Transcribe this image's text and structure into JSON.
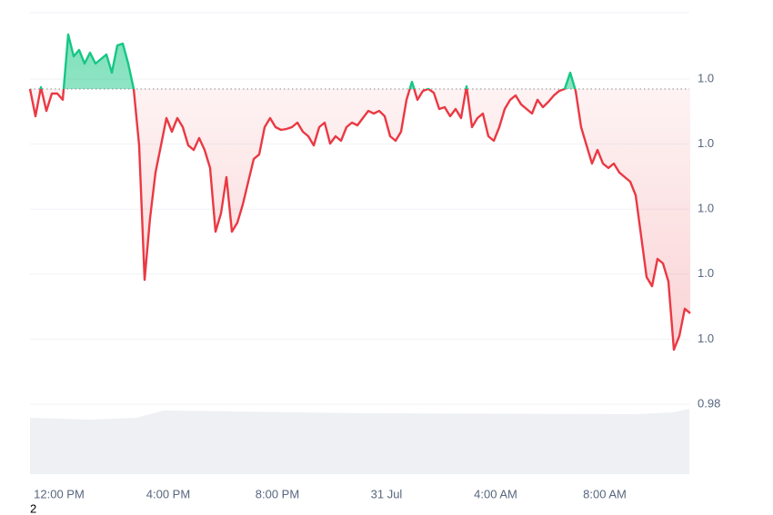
{
  "chart_data": {
    "type": "line",
    "annotation": "2",
    "baseline": 0.99939,
    "color_up": "#16c784",
    "color_down": "#ea3943",
    "xlim": [
      0,
      121
    ],
    "xticks": [
      {
        "value": 5.33,
        "label": "12:00 PM"
      },
      {
        "value": 25.33,
        "label": "4:00 PM"
      },
      {
        "value": 45.33,
        "label": "8:00 PM"
      },
      {
        "value": 65.33,
        "label": "31 Jul"
      },
      {
        "value": 85.33,
        "label": "4:00 AM"
      },
      {
        "value": 105.33,
        "label": "8:00 AM"
      }
    ],
    "ylim": [
      0.98,
      1.00408
    ],
    "yticks": [
      0.98,
      {
        "value": 0.984,
        "label": "1.0"
      },
      {
        "value": 0.988,
        "label": "1.0"
      },
      {
        "value": 0.992,
        "label": "1.0"
      },
      {
        "value": 0.996,
        "label": "1.0"
      },
      {
        "value": 1.0,
        "label": "1.0"
      }
    ],
    "grid": true,
    "values": [
      0.99939,
      0.99771,
      0.9995,
      0.99804,
      0.99911,
      0.99911,
      0.99872,
      1.00274,
      1.0014,
      1.00179,
      1.00095,
      1.00162,
      1.00095,
      1.00123,
      1.00151,
      1.00039,
      1.00207,
      1.00218,
      1.00095,
      0.99939,
      0.99592,
      0.98765,
      0.99145,
      0.99425,
      0.99592,
      0.9976,
      0.99676,
      0.9976,
      0.99704,
      0.99592,
      0.99564,
      0.99637,
      0.99564,
      0.99453,
      0.99061,
      0.99173,
      0.99397,
      0.99061,
      0.99117,
      0.99229,
      0.99369,
      0.99508,
      0.99536,
      0.99704,
      0.9976,
      0.99704,
      0.99687,
      0.99693,
      0.99704,
      0.99732,
      0.99676,
      0.99648,
      0.99592,
      0.99704,
      0.99732,
      0.99603,
      0.99648,
      0.9962,
      0.99704,
      0.99732,
      0.99715,
      0.9976,
      0.99804,
      0.99788,
      0.99804,
      0.99771,
      0.99648,
      0.9962,
      0.99676,
      0.99872,
      0.99983,
      0.99872,
      0.99927,
      0.99939,
      0.99916,
      0.99816,
      0.99827,
      0.99771,
      0.99816,
      0.9976,
      0.99955,
      0.99704,
      0.9976,
      0.99788,
      0.99648,
      0.9962,
      0.99704,
      0.99816,
      0.99872,
      0.99899,
      0.99844,
      0.99816,
      0.99788,
      0.99872,
      0.99827,
      0.9986,
      0.99899,
      0.99927,
      0.99939,
      1.00039,
      0.99927,
      0.99704,
      0.99592,
      0.9948,
      0.99564,
      0.9948,
      0.99453,
      0.9948,
      0.99425,
      0.99397,
      0.99369,
      0.99285,
      0.99034,
      0.98782,
      0.98726,
      0.98894,
      0.98866,
      0.98754,
      0.98335,
      0.98419,
      0.98587,
      0.98559
    ]
  }
}
